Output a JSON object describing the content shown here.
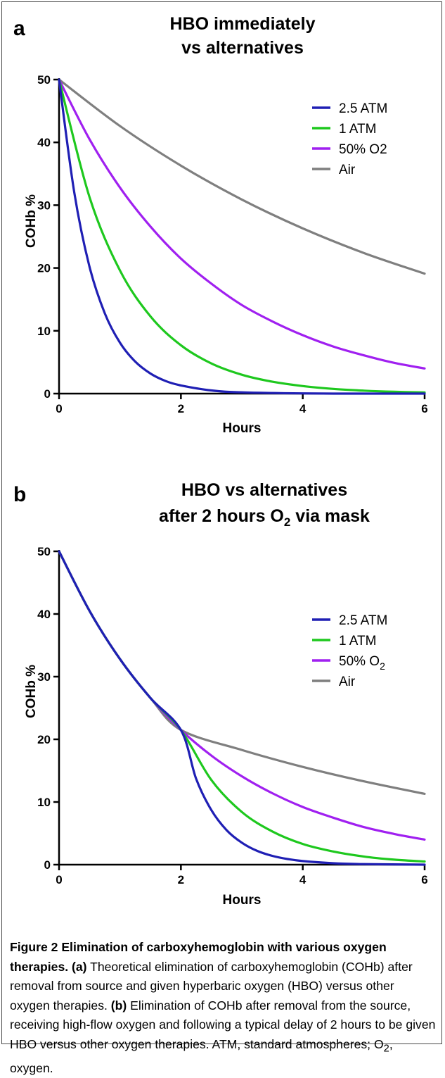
{
  "chart_data": [
    {
      "type": "line",
      "panel": "a",
      "title": [
        "HBO immediately",
        "vs alternatives"
      ],
      "xlabel": "Hours",
      "ylabel": "COHb %",
      "xlim": [
        0,
        6
      ],
      "ylim": [
        0,
        50
      ],
      "xticks": [
        0,
        2,
        4,
        6
      ],
      "yticks": [
        0,
        10,
        20,
        30,
        40,
        50
      ],
      "legend_position": "top-right",
      "series": [
        {
          "name": "2.5 ATM",
          "color": "#1f1fb4",
          "x": [
            0,
            0.25,
            0.5,
            0.75,
            1,
            1.25,
            1.5,
            1.75,
            2,
            2.5,
            3,
            4,
            5,
            6
          ],
          "y": [
            50,
            32,
            20.2,
            12.8,
            8.1,
            5.1,
            3.2,
            2.0,
            1.3,
            0.5,
            0.2,
            0.03,
            0,
            0
          ]
        },
        {
          "name": "1 ATM",
          "color": "#1ec81e",
          "x": [
            0,
            0.5,
            1,
            1.5,
            2,
            2.5,
            3,
            3.5,
            4,
            4.5,
            5,
            5.5,
            6
          ],
          "y": [
            50,
            31.3,
            19.6,
            12.3,
            7.7,
            4.8,
            3.0,
            1.9,
            1.2,
            0.75,
            0.47,
            0.29,
            0.18
          ]
        },
        {
          "name": "50% O2",
          "color": "#a020f0",
          "x": [
            0,
            0.5,
            1,
            1.5,
            2,
            2.5,
            3,
            3.5,
            4,
            4.5,
            5,
            5.5,
            6
          ],
          "y": [
            50,
            40.5,
            32.8,
            26.6,
            21.5,
            17.5,
            14.1,
            11.5,
            9.3,
            7.5,
            6.1,
            4.9,
            4.0
          ]
        },
        {
          "name": "Air",
          "color": "#7f7f7f",
          "x": [
            0,
            1,
            2,
            3,
            4,
            5,
            6
          ],
          "y": [
            50,
            42.6,
            36.3,
            30.9,
            26.3,
            22.4,
            19.1
          ]
        }
      ]
    },
    {
      "type": "line",
      "panel": "b",
      "title": [
        "HBO vs alternatives",
        "after 2 hours O",
        "2",
        " via mask"
      ],
      "xlabel": "Hours",
      "ylabel": "COHb %",
      "xlim": [
        0,
        6
      ],
      "ylim": [
        0,
        50
      ],
      "xticks": [
        0,
        2,
        4,
        6
      ],
      "yticks": [
        0,
        10,
        20,
        30,
        40,
        50
      ],
      "legend_position": "right",
      "series": [
        {
          "name": "2.5 ATM",
          "color": "#1f1fb4",
          "x": [
            0,
            0.5,
            1,
            1.5,
            2,
            2.25,
            2.5,
            2.75,
            3,
            3.25,
            3.5,
            3.75,
            4,
            4.5,
            5,
            6
          ],
          "y": [
            50,
            40.5,
            32.8,
            26.6,
            21.5,
            13.7,
            8.7,
            5.5,
            3.5,
            2.2,
            1.4,
            0.9,
            0.57,
            0.23,
            0.09,
            0
          ]
        },
        {
          "name": "1 ATM",
          "color": "#1ec81e",
          "x": [
            0,
            0.5,
            1,
            1.5,
            2,
            2.5,
            3,
            3.5,
            4,
            4.5,
            5,
            5.5,
            6
          ],
          "y": [
            50,
            40.5,
            32.8,
            26.6,
            21.5,
            13.5,
            8.4,
            5.3,
            3.3,
            2.1,
            1.3,
            0.8,
            0.5
          ]
        },
        {
          "name": "50% O",
          "sub": "2",
          "color": "#a020f0",
          "x": [
            0,
            0.5,
            1,
            1.5,
            2,
            2.5,
            3,
            3.5,
            4,
            4.5,
            5,
            5.5,
            6
          ],
          "y": [
            50,
            40.5,
            32.8,
            26.6,
            21.5,
            17.4,
            14.1,
            11.4,
            9.2,
            7.5,
            6.0,
            4.9,
            4.0
          ]
        },
        {
          "name": "Air",
          "color": "#7f7f7f",
          "x": [
            0,
            0.5,
            1,
            1.5,
            2,
            3,
            4,
            5,
            6
          ],
          "y": [
            50,
            40.5,
            32.8,
            26.6,
            21.5,
            18.3,
            15.6,
            13.3,
            11.3
          ]
        }
      ]
    }
  ],
  "caption": {
    "title": "Figure 2 Elimination of carboxyhemoglobin with various oxygen therapies.",
    "part_a_label": "(a)",
    "part_a_text": " Theoretical elimination of carboxyhemoglobin (COHb) after removal from source and given hyperbaric oxygen (HBO) versus other oxygen therapies. ",
    "part_b_label": "(b)",
    "part_b_text": " Elimination of COHb after removal from the source, receiving high-flow oxygen and following a typical delay of 2 hours to be given HBO versus other oxygen therapies. ATM, standard atmospheres; O",
    "sub": "2",
    "end": ", oxygen."
  }
}
